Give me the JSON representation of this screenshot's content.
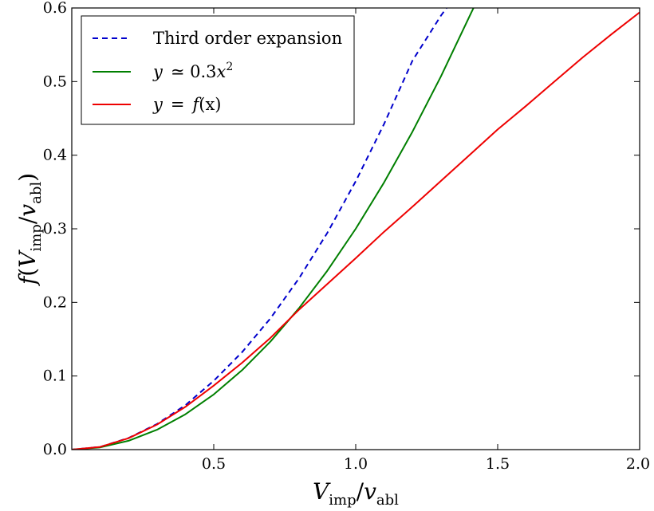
{
  "chart_data": {
    "type": "line",
    "xlabel": {
      "main": "V",
      "main_sub": "imp",
      "slash": "/",
      "second": "v",
      "second_sub": "abl"
    },
    "ylabel": {
      "func": "f",
      "open": "(",
      "main": "V",
      "main_sub": "imp",
      "slash": "/",
      "second": "v",
      "second_sub": "abl",
      "close": ")"
    },
    "xlim": [
      0.0,
      2.0
    ],
    "ylim": [
      0.0,
      0.6
    ],
    "xticks": [
      0.5,
      1.0,
      1.5,
      2.0
    ],
    "xtick_labels": [
      "0.5",
      "1.0",
      "1.5",
      "2.0"
    ],
    "yticks": [
      0.0,
      0.1,
      0.2,
      0.3,
      0.4,
      0.5,
      0.6
    ],
    "ytick_labels": [
      "0.0",
      "0.1",
      "0.2",
      "0.3",
      "0.4",
      "0.5",
      "0.6"
    ],
    "grid": false,
    "legend_position": "top-left",
    "series": [
      {
        "legend": {
          "text": "Third order expansion"
        },
        "color": "#0000cc",
        "style": "dashed",
        "x": [
          0.0,
          0.1,
          0.2,
          0.3,
          0.4,
          0.5,
          0.6,
          0.7,
          0.8,
          0.9,
          1.0,
          1.1,
          1.2,
          1.3,
          1.32
        ],
        "y": [
          0.0,
          0.0037,
          0.0158,
          0.0348,
          0.0603,
          0.0935,
          0.1325,
          0.1785,
          0.2325,
          0.2945,
          0.3645,
          0.4425,
          0.5285,
          0.5895,
          0.6
        ]
      },
      {
        "legend": {
          "y": "y",
          "approx": "≃ 0.3",
          "x": "x",
          "sup": "2"
        },
        "color": "#007f00",
        "style": "solid",
        "x": [
          0.0,
          0.1,
          0.2,
          0.3,
          0.4,
          0.5,
          0.6,
          0.7,
          0.8,
          0.9,
          1.0,
          1.1,
          1.2,
          1.3,
          1.4,
          1.415
        ],
        "y": [
          0.0,
          0.003,
          0.012,
          0.027,
          0.048,
          0.075,
          0.108,
          0.147,
          0.192,
          0.243,
          0.3,
          0.363,
          0.432,
          0.507,
          0.588,
          0.6
        ]
      },
      {
        "legend": {
          "y": "y",
          "eq": "=",
          "f": "f",
          "x": "(x)"
        },
        "color": "#ee0000",
        "style": "solid",
        "x": [
          0.0,
          0.1,
          0.2,
          0.3,
          0.4,
          0.5,
          0.6,
          0.7,
          0.8,
          0.9,
          1.0,
          1.1,
          1.2,
          1.3,
          1.4,
          1.5,
          1.6,
          1.7,
          1.8,
          1.9,
          2.0
        ],
        "y": [
          0.0,
          0.0037,
          0.0155,
          0.034,
          0.058,
          0.087,
          0.118,
          0.152,
          0.19,
          0.225,
          0.26,
          0.296,
          0.33,
          0.365,
          0.4,
          0.435,
          0.467,
          0.5,
          0.533,
          0.564,
          0.594
        ]
      }
    ]
  }
}
